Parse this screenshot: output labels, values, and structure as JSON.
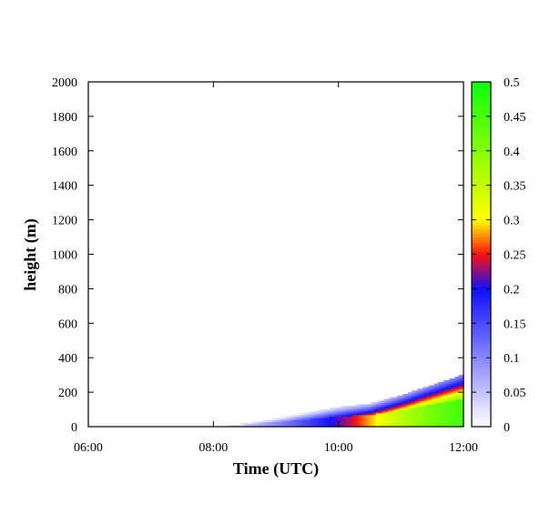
{
  "chart_data": {
    "type": "heatmap",
    "title": "",
    "xlabel": "Time (UTC)",
    "ylabel": "height (m)",
    "x_ticks": [
      "06:00",
      "08:00",
      "10:00",
      "12:00"
    ],
    "x_range_hours": [
      6,
      12
    ],
    "y_ticks": [
      0,
      200,
      400,
      600,
      800,
      1000,
      1200,
      1400,
      1600,
      1800,
      2000
    ],
    "ylim": [
      0,
      2000
    ],
    "colorbar": {
      "ticks": [
        "0",
        "0.05",
        "0.1",
        "0.15",
        "0.2",
        "0.25",
        "0.3",
        "0.35",
        "0.4",
        "0.45",
        "0.5"
      ],
      "range": [
        0,
        0.5
      ],
      "stops": [
        {
          "value": 0.0,
          "color": "#ffffff"
        },
        {
          "value": 0.2,
          "color": "#1010ff"
        },
        {
          "value": 0.25,
          "color": "#ff1010"
        },
        {
          "value": 0.3,
          "color": "#ffff00"
        },
        {
          "value": 0.5,
          "color": "#10ff10"
        }
      ]
    },
    "field": {
      "description_hours": "layer top height (m) at time",
      "layer_top": [
        {
          "t": 8.2,
          "h": 0
        },
        {
          "t": 9.0,
          "h": 40
        },
        {
          "t": 10.0,
          "h": 100
        },
        {
          "t": 10.5,
          "h": 120
        },
        {
          "t": 11.0,
          "h": 170
        },
        {
          "t": 11.5,
          "h": 230
        },
        {
          "t": 12.0,
          "h": 290
        }
      ],
      "core": [
        {
          "t": 8.2,
          "v": 0.02
        },
        {
          "t": 9.0,
          "v": 0.1
        },
        {
          "t": 9.7,
          "v": 0.18
        },
        {
          "t": 10.2,
          "v": 0.24
        },
        {
          "t": 10.6,
          "v": 0.3
        },
        {
          "t": 11.0,
          "v": 0.36
        },
        {
          "t": 11.5,
          "v": 0.42
        },
        {
          "t": 12.0,
          "v": 0.46
        }
      ]
    }
  }
}
